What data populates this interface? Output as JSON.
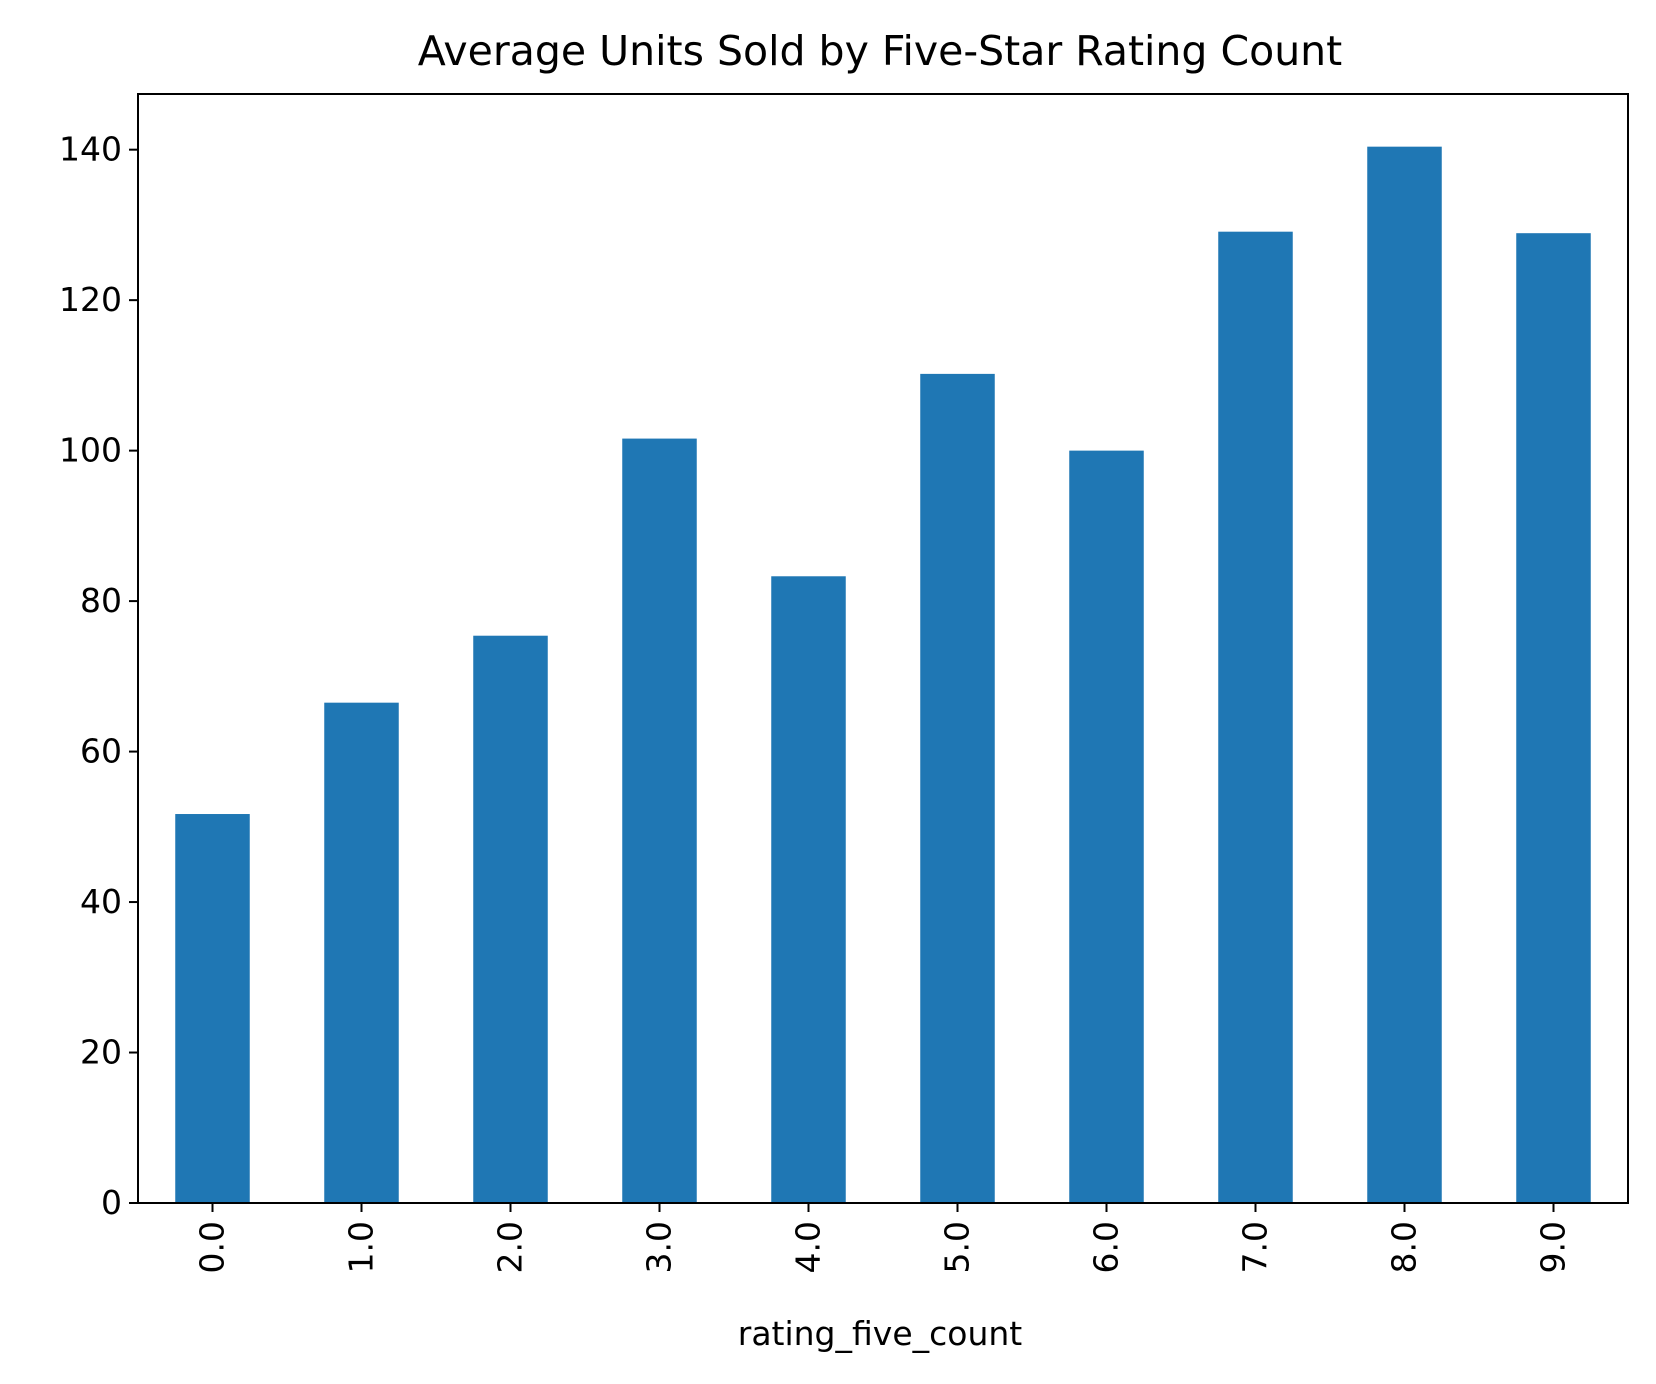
{
  "chart_data": {
    "type": "bar",
    "title": "Average Units Sold by Five-Star Rating Count",
    "xlabel": "rating_five_count",
    "ylabel": "",
    "categories": [
      "0.0",
      "1.0",
      "2.0",
      "3.0",
      "4.0",
      "5.0",
      "6.0",
      "7.0",
      "8.0",
      "9.0"
    ],
    "values": [
      51.7,
      66.5,
      75.4,
      101.6,
      83.3,
      110.2,
      100.0,
      129.1,
      140.4,
      128.9
    ],
    "ylim": [
      0,
      147.4
    ],
    "yticks": [
      "0",
      "20",
      "40",
      "60",
      "80",
      "100",
      "120",
      "140"
    ],
    "ytick_values": [
      0,
      20,
      40,
      60,
      80,
      100,
      120,
      140
    ],
    "grid": false,
    "legend": "none",
    "colors": {
      "bar": "#1f77b4",
      "axis": "#000000",
      "background": "#ffffff"
    }
  }
}
